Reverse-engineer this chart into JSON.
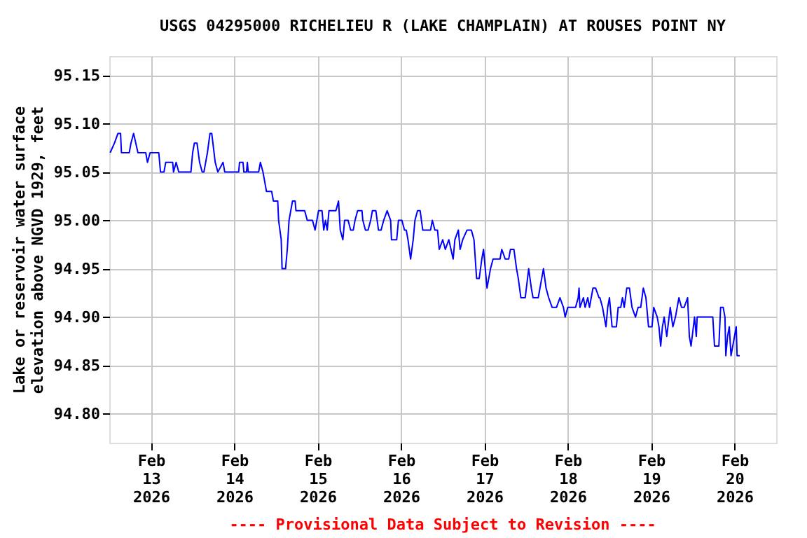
{
  "chart_data": {
    "type": "line",
    "title": "USGS 04295000 RICHELIEU R (LAKE CHAMPLAIN) AT ROUSES POINT NY",
    "ylabel": "Lake or reservoir water surface\nelevation above NGVD 1929, feet",
    "annotations": [
      "---- Provisional Data Subject to Revision ----"
    ],
    "xlim": [
      "2026-02-12T12:00",
      "2026-02-20T12:00"
    ],
    "xticks": [
      {
        "value": "2026-02-13",
        "label": "Feb\n13\n2026"
      },
      {
        "value": "2026-02-14",
        "label": "Feb\n14\n2026"
      },
      {
        "value": "2026-02-15",
        "label": "Feb\n15\n2026"
      },
      {
        "value": "2026-02-16",
        "label": "Feb\n16\n2026"
      },
      {
        "value": "2026-02-17",
        "label": "Feb\n17\n2026"
      },
      {
        "value": "2026-02-18",
        "label": "Feb\n18\n2026"
      },
      {
        "value": "2026-02-19",
        "label": "Feb\n19\n2026"
      },
      {
        "value": "2026-02-20",
        "label": "Feb\n20\n2026"
      }
    ],
    "ylim": [
      94.77,
      95.17
    ],
    "yticks": [
      {
        "value": 94.8,
        "label": "94.80"
      },
      {
        "value": 94.85,
        "label": "94.85"
      },
      {
        "value": 94.9,
        "label": "94.90"
      },
      {
        "value": 94.95,
        "label": "94.95"
      },
      {
        "value": 95.0,
        "label": "95.00"
      },
      {
        "value": 95.05,
        "label": "95.05"
      },
      {
        "value": 95.1,
        "label": "95.10"
      },
      {
        "value": 95.15,
        "label": "95.15"
      }
    ],
    "grid": true,
    "marker": "none",
    "line_style": "solid",
    "series": [
      {
        "color": "#0000ff",
        "x": [
          "2026-02-12T12:15",
          "2026-02-12T13:30",
          "2026-02-12T14:30",
          "2026-02-12T15:15",
          "2026-02-12T15:30",
          "2026-02-12T17:45",
          "2026-02-12T18:15",
          "2026-02-12T19:00",
          "2026-02-12T20:15",
          "2026-02-12T22:30",
          "2026-02-12T23:00",
          "2026-02-12T23:45",
          "2026-02-13T02:15",
          "2026-02-13T02:45",
          "2026-02-13T03:45",
          "2026-02-13T04:15",
          "2026-02-13T06:15",
          "2026-02-13T06:30",
          "2026-02-13T07:15",
          "2026-02-13T08:00",
          "2026-02-13T11:30",
          "2026-02-13T12:00",
          "2026-02-13T12:30",
          "2026-02-13T13:15",
          "2026-02-13T14:00",
          "2026-02-13T14:45",
          "2026-02-13T15:15",
          "2026-02-13T16:15",
          "2026-02-13T17:00",
          "2026-02-13T17:30",
          "2026-02-13T18:30",
          "2026-02-13T19:15",
          "2026-02-13T20:45",
          "2026-02-13T21:15",
          "2026-02-14T01:15",
          "2026-02-14T01:30",
          "2026-02-14T02:30",
          "2026-02-14T02:45",
          "2026-02-14T03:30",
          "2026-02-14T03:45",
          "2026-02-14T04:00",
          "2026-02-14T07:00",
          "2026-02-14T07:30",
          "2026-02-14T08:15",
          "2026-02-14T08:45",
          "2026-02-14T09:15",
          "2026-02-14T10:45",
          "2026-02-14T11:15",
          "2026-02-14T12:30",
          "2026-02-14T12:45",
          "2026-02-14T13:30",
          "2026-02-14T13:45",
          "2026-02-14T14:45",
          "2026-02-14T15:15",
          "2026-02-14T15:45",
          "2026-02-14T16:15",
          "2026-02-14T16:45",
          "2026-02-14T17:30",
          "2026-02-14T17:45",
          "2026-02-14T20:15",
          "2026-02-14T21:00",
          "2026-02-14T22:30",
          "2026-02-14T23:15",
          "2026-02-14T23:45",
          "2026-02-15T00:15",
          "2026-02-15T01:15",
          "2026-02-15T01:45",
          "2026-02-15T02:15",
          "2026-02-15T02:45",
          "2026-02-15T03:15",
          "2026-02-15T05:15",
          "2026-02-15T06:00",
          "2026-02-15T06:30",
          "2026-02-15T07:15",
          "2026-02-15T07:45",
          "2026-02-15T08:45",
          "2026-02-15T09:30",
          "2026-02-15T10:15",
          "2026-02-15T10:45",
          "2026-02-15T11:30",
          "2026-02-15T12:45",
          "2026-02-15T13:00",
          "2026-02-15T13:45",
          "2026-02-15T14:30",
          "2026-02-15T15:15",
          "2026-02-15T15:45",
          "2026-02-15T16:45",
          "2026-02-15T17:30",
          "2026-02-15T18:15",
          "2026-02-15T19:00",
          "2026-02-15T20:00",
          "2026-02-15T21:00",
          "2026-02-15T21:15",
          "2026-02-15T22:45",
          "2026-02-15T23:15",
          "2026-02-16T00:15",
          "2026-02-16T01:00",
          "2026-02-16T01:30",
          "2026-02-16T02:00",
          "2026-02-16T02:45",
          "2026-02-16T03:30",
          "2026-02-16T04:00",
          "2026-02-16T04:45",
          "2026-02-16T05:30",
          "2026-02-16T06:15",
          "2026-02-16T08:30",
          "2026-02-16T09:00",
          "2026-02-16T09:45",
          "2026-02-16T10:30",
          "2026-02-16T11:00",
          "2026-02-16T12:00",
          "2026-02-16T12:45",
          "2026-02-16T13:45",
          "2026-02-16T15:00",
          "2026-02-16T15:30",
          "2026-02-16T16:30",
          "2026-02-16T17:00",
          "2026-02-16T17:45",
          "2026-02-16T19:00",
          "2026-02-16T20:15",
          "2026-02-16T21:00",
          "2026-02-16T21:45",
          "2026-02-16T22:30",
          "2026-02-16T23:15",
          "2026-02-16T23:45",
          "2026-02-17T00:15",
          "2026-02-17T00:45",
          "2026-02-17T01:45",
          "2026-02-17T02:30",
          "2026-02-17T04:30",
          "2026-02-17T05:00",
          "2026-02-17T06:00",
          "2026-02-17T07:00",
          "2026-02-17T07:30",
          "2026-02-17T08:30",
          "2026-02-17T09:15",
          "2026-02-17T09:45",
          "2026-02-17T10:30",
          "2026-02-17T11:45",
          "2026-02-17T12:45",
          "2026-02-17T13:30",
          "2026-02-17T14:00",
          "2026-02-17T15:30",
          "2026-02-17T16:30",
          "2026-02-17T17:00",
          "2026-02-17T17:45",
          "2026-02-17T18:30",
          "2026-02-17T19:30",
          "2026-02-17T20:45",
          "2026-02-17T21:45",
          "2026-02-17T22:45",
          "2026-02-17T23:15",
          "2026-02-18T00:00",
          "2026-02-18T02:15",
          "2026-02-18T03:00",
          "2026-02-18T03:15",
          "2026-02-18T03:30",
          "2026-02-18T04:30",
          "2026-02-18T05:00",
          "2026-02-18T05:45",
          "2026-02-18T06:15",
          "2026-02-18T07:15",
          "2026-02-18T08:00",
          "2026-02-18T09:00",
          "2026-02-18T09:15",
          "2026-02-18T10:00",
          "2026-02-18T11:00",
          "2026-02-18T11:30",
          "2026-02-18T12:00",
          "2026-02-18T12:45",
          "2026-02-18T14:00",
          "2026-02-18T14:30",
          "2026-02-18T15:15",
          "2026-02-18T15:45",
          "2026-02-18T16:15",
          "2026-02-18T17:00",
          "2026-02-18T17:45",
          "2026-02-18T18:30",
          "2026-02-18T19:30",
          "2026-02-18T20:15",
          "2026-02-18T21:00",
          "2026-02-18T21:45",
          "2026-02-18T22:30",
          "2026-02-18T23:15",
          "2026-02-19T00:15",
          "2026-02-19T00:45",
          "2026-02-19T01:45",
          "2026-02-19T02:15",
          "2026-02-19T02:45",
          "2026-02-19T03:15",
          "2026-02-19T03:45",
          "2026-02-19T04:30",
          "2026-02-19T05:30",
          "2026-02-19T06:15",
          "2026-02-19T07:00",
          "2026-02-19T08:00",
          "2026-02-19T08:45",
          "2026-02-19T09:30",
          "2026-02-19T10:30",
          "2026-02-19T11:00",
          "2026-02-19T11:30",
          "2026-02-19T12:30",
          "2026-02-19T13:00",
          "2026-02-19T13:15",
          "2026-02-19T17:45",
          "2026-02-19T18:15",
          "2026-02-19T19:30",
          "2026-02-19T20:00",
          "2026-02-19T20:45",
          "2026-02-19T21:15",
          "2026-02-19T21:30",
          "2026-02-19T22:00",
          "2026-02-19T22:30",
          "2026-02-19T23:00",
          "2026-02-20T00:00",
          "2026-02-20T00:30",
          "2026-02-20T00:45",
          "2026-02-20T01:30"
        ],
        "values": [
          95.07,
          95.08,
          95.09,
          95.09,
          95.07,
          95.07,
          95.08,
          95.09,
          95.07,
          95.07,
          95.06,
          95.07,
          95.07,
          95.05,
          95.05,
          95.06,
          95.06,
          95.05,
          95.06,
          95.05,
          95.05,
          95.07,
          95.08,
          95.08,
          95.06,
          95.05,
          95.05,
          95.07,
          95.09,
          95.09,
          95.06,
          95.05,
          95.06,
          95.05,
          95.05,
          95.06,
          95.06,
          95.05,
          95.05,
          95.06,
          95.05,
          95.05,
          95.06,
          95.05,
          95.04,
          95.03,
          95.03,
          95.02,
          95.02,
          95.0,
          94.98,
          94.95,
          94.95,
          94.97,
          95.0,
          95.01,
          95.02,
          95.02,
          95.01,
          95.01,
          95.0,
          95.0,
          94.99,
          95.0,
          95.01,
          95.01,
          94.99,
          95.0,
          94.99,
          95.01,
          95.01,
          95.02,
          94.99,
          94.98,
          95.0,
          95.0,
          94.99,
          94.99,
          95.0,
          95.01,
          95.01,
          95.0,
          94.99,
          94.99,
          95.0,
          95.01,
          95.01,
          94.99,
          94.99,
          95.0,
          95.01,
          95.0,
          94.98,
          94.98,
          95.0,
          95.0,
          94.99,
          94.99,
          94.98,
          94.96,
          94.98,
          95.0,
          95.01,
          95.01,
          94.99,
          94.99,
          95.0,
          94.99,
          94.99,
          94.97,
          94.98,
          94.97,
          94.98,
          94.96,
          94.98,
          94.99,
          94.97,
          94.98,
          94.99,
          94.99,
          94.98,
          94.94,
          94.94,
          94.96,
          94.97,
          94.95,
          94.93,
          94.95,
          94.96,
          94.96,
          94.97,
          94.96,
          94.96,
          94.97,
          94.97,
          94.95,
          94.94,
          94.92,
          94.92,
          94.95,
          94.93,
          94.92,
          94.92,
          94.94,
          94.95,
          94.93,
          94.92,
          94.91,
          94.91,
          94.92,
          94.91,
          94.9,
          94.91,
          94.91,
          94.92,
          94.93,
          94.91,
          94.92,
          94.91,
          94.92,
          94.91,
          94.93,
          94.93,
          94.92,
          94.92,
          94.91,
          94.89,
          94.91,
          94.92,
          94.89,
          94.89,
          94.91,
          94.91,
          94.92,
          94.91,
          94.93,
          94.93,
          94.91,
          94.9,
          94.91,
          94.91,
          94.93,
          94.92,
          94.89,
          94.89,
          94.91,
          94.9,
          94.89,
          94.87,
          94.89,
          94.9,
          94.88,
          94.91,
          94.89,
          94.9,
          94.92,
          94.91,
          94.91,
          94.92,
          94.88,
          94.87,
          94.9,
          94.88,
          94.9,
          94.9,
          94.87,
          94.87,
          94.91,
          94.91,
          94.9,
          94.86,
          94.88,
          94.89,
          94.86,
          94.88,
          94.89,
          94.86,
          94.86
        ]
      }
    ]
  }
}
